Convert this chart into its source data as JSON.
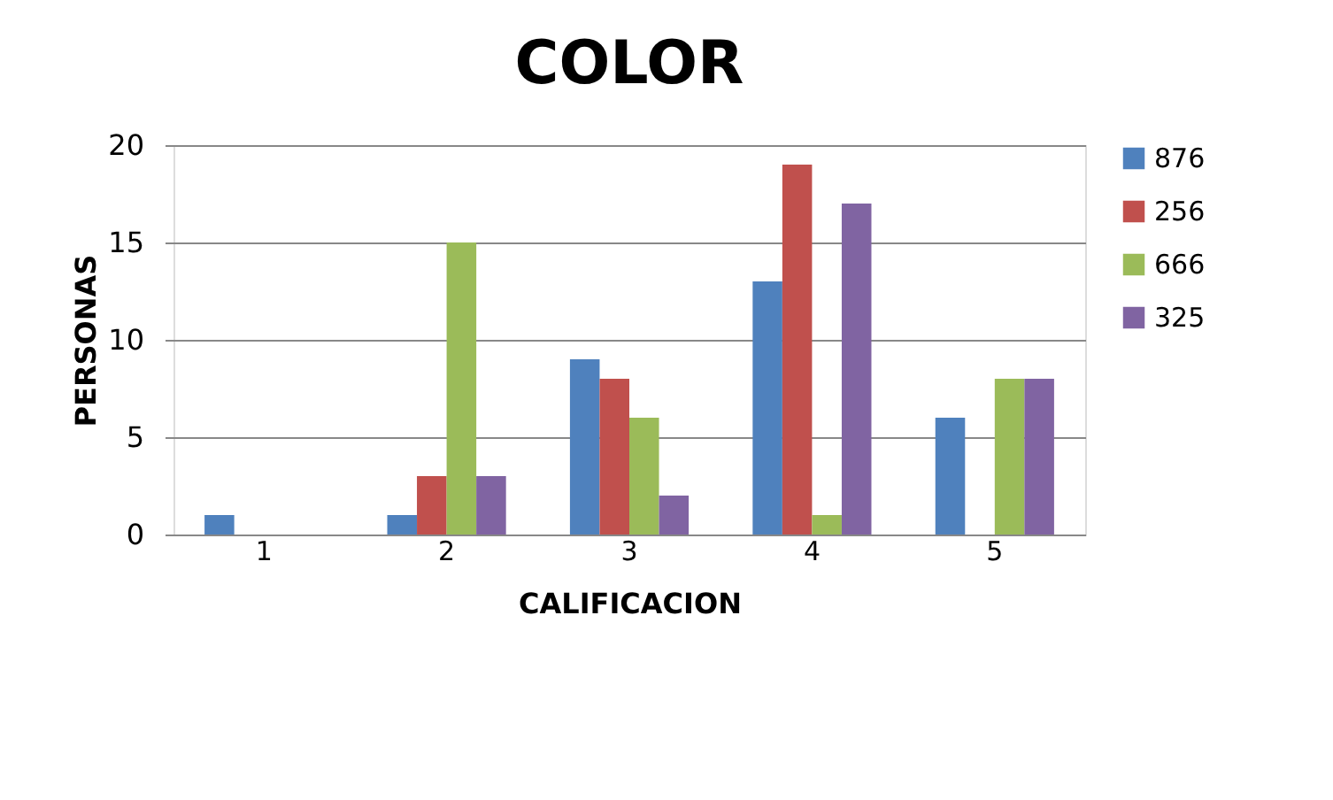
{
  "chart_data": {
    "type": "bar",
    "title": "COLOR",
    "xlabel": "CALIFICACION",
    "ylabel": "PERSONAS",
    "categories": [
      "1",
      "2",
      "3",
      "4",
      "5"
    ],
    "series": [
      {
        "name": "876",
        "color": "#4f81bd",
        "values": [
          1,
          1,
          9,
          13,
          6
        ]
      },
      {
        "name": "256",
        "color": "#c0504d",
        "values": [
          0,
          3,
          8,
          19,
          0
        ]
      },
      {
        "name": "666",
        "color": "#9bbb59",
        "values": [
          0,
          15,
          6,
          1,
          8
        ]
      },
      {
        "name": "325",
        "color": "#8064a2",
        "values": [
          0,
          3,
          2,
          17,
          8
        ]
      }
    ],
    "ylim": [
      0,
      20
    ],
    "yticks": [
      0,
      5,
      10,
      15,
      20
    ],
    "grid": "y",
    "legend": "right"
  }
}
